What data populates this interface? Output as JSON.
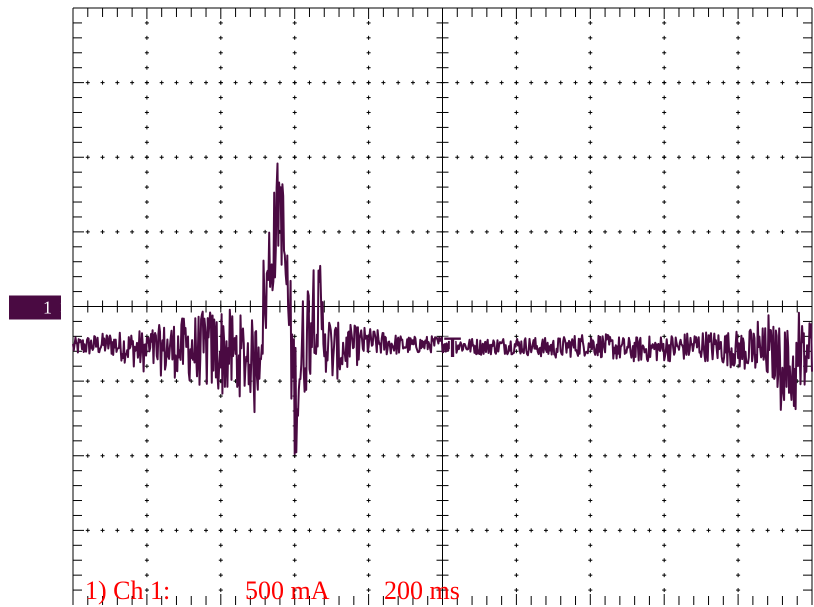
{
  "colors": {
    "trace": "#4a0a42",
    "grid": "#000000",
    "label": "#ff0000",
    "background": "#ffffff"
  },
  "scope": {
    "divisions_x": 10,
    "divisions_y": 8,
    "subdivisions": 5,
    "channel_marker": "1",
    "channel_marker_arrow": ">",
    "trigger_glyph": "T"
  },
  "scale": {
    "channel": "1) Ch 1:",
    "vertical": "500 mA",
    "horizontal": "200 ms"
  },
  "chart_data": {
    "type": "line",
    "title": "",
    "xlabel": "",
    "ylabel": "",
    "x_unit": "ms",
    "y_unit": "mA",
    "time_per_div_ms": 200,
    "current_per_div_mA": 500,
    "xlim": [
      0,
      2000
    ],
    "ylim": [
      -2000,
      2000
    ],
    "ground_level_mA": 0,
    "trigger_time_ms": 1000,
    "grid": true,
    "series": [
      {
        "name": "",
        "x": [
          0,
          100,
          200,
          300,
          400,
          500,
          560,
          600,
          650,
          700,
          800,
          900,
          1000,
          1100,
          1200,
          1300,
          1400,
          1500,
          1600,
          1700,
          1800,
          1900,
          1950,
          2000
        ],
        "y": [
          -270,
          -250,
          -300,
          -280,
          -300,
          -350,
          770,
          -600,
          50,
          -310,
          -240,
          -260,
          -250,
          -270,
          -260,
          -280,
          -250,
          -290,
          -280,
          -260,
          -290,
          -320,
          -450,
          -280
        ],
        "noise_peak_to_peak_mA": [
          120,
          160,
          300,
          420,
          620,
          500,
          700,
          900,
          700,
          420,
          200,
          120,
          110,
          110,
          120,
          140,
          160,
          170,
          180,
          200,
          260,
          400,
          620,
          500
        ]
      }
    ]
  }
}
